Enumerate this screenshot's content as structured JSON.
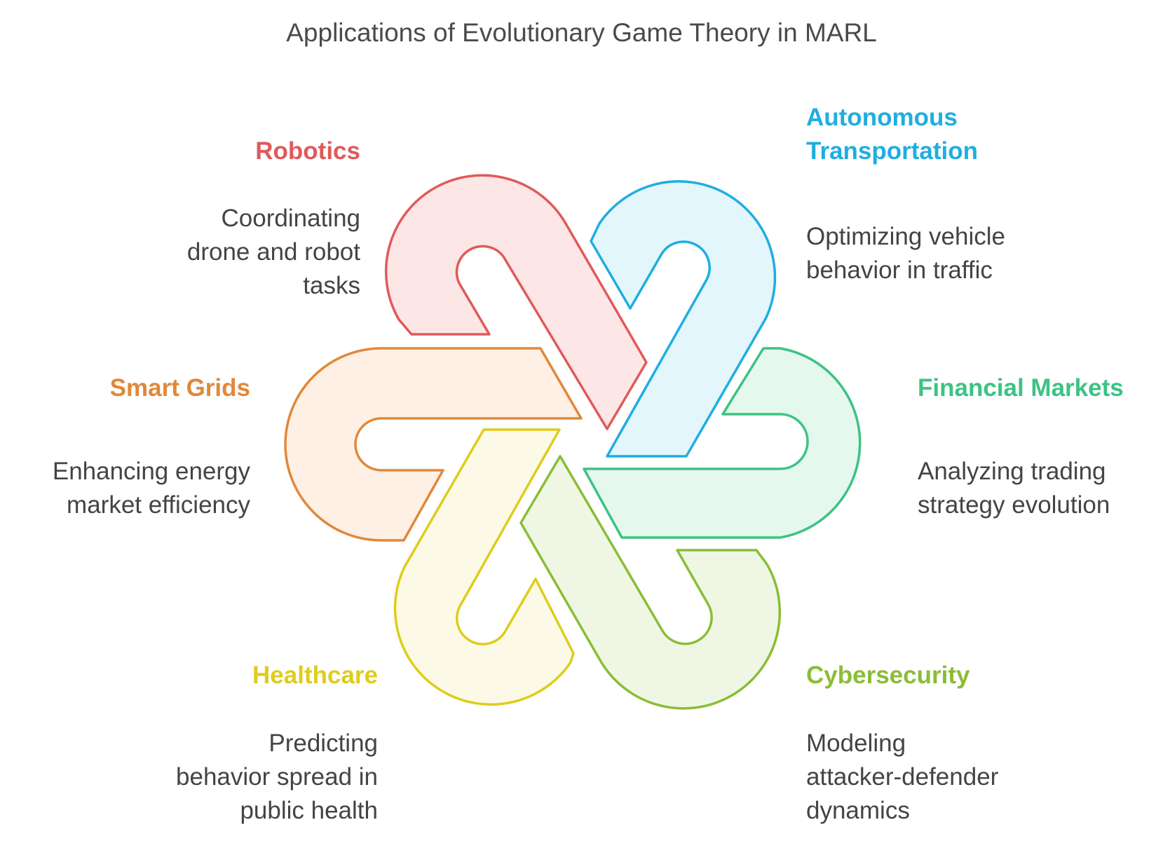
{
  "title": "Applications of Evolutionary Game Theory in MARL",
  "items": [
    {
      "key": "robotics",
      "heading": "Robotics",
      "description": "Coordinating\ndrone and robot\ntasks",
      "color": "#e05a5a",
      "fill": "#fde6e6"
    },
    {
      "key": "autonomous",
      "heading": "Autonomous\nTransportation",
      "description": "Optimizing vehicle\nbehavior in traffic",
      "color": "#1faee0",
      "fill": "#e3f6fc"
    },
    {
      "key": "financial",
      "heading": "Financial Markets",
      "description": "Analyzing trading\nstrategy evolution",
      "color": "#3cc383",
      "fill": "#e5f8ee"
    },
    {
      "key": "cybersecurity",
      "heading": "Cybersecurity",
      "description": "Modeling\nattacker-defender\ndynamics",
      "color": "#8bbd35",
      "fill": "#eff7e4"
    },
    {
      "key": "healthcare",
      "heading": "Healthcare",
      "description": "Predicting\nbehavior spread in\npublic health",
      "color": "#dfcc1c",
      "fill": "#fcfae6"
    },
    {
      "key": "smartgrids",
      "heading": "Smart Grids",
      "description": "Enhancing energy\nmarket efficiency",
      "color": "#e0883a",
      "fill": "#fef0e4"
    }
  ]
}
